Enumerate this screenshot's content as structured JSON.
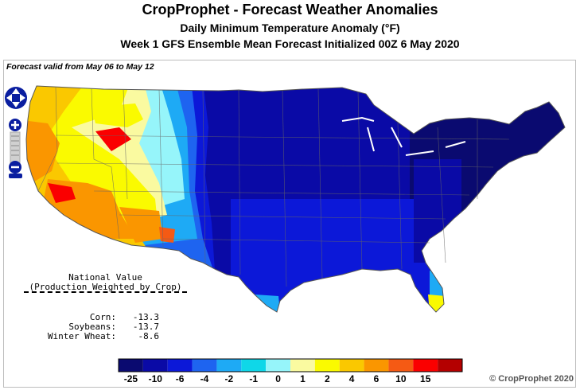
{
  "header": {
    "title": "CropProphet - Forecast Weather Anomalies",
    "subtitle": "Daily Minimum Temperature Anomaly (°F)",
    "subtitle2": "Week 1 GFS Ensemble Mean Forecast Initialized 00Z 6 May 2020"
  },
  "map": {
    "valid_text": "Forecast valid from May 06 to May 12",
    "region": "Contiguous United States",
    "overall_pattern": "Warm anomalies over the West/Southwest, strongly cold anomalies over the central and eastern US"
  },
  "national": {
    "title": "National Value",
    "subtitle": "(Production Weighted by Crop)",
    "rows": [
      {
        "name": "Corn:",
        "value": "-13.3"
      },
      {
        "name": "Soybeans:",
        "value": "-13.7"
      },
      {
        "name": "Winter Wheat:",
        "value": "-8.6"
      }
    ]
  },
  "legend": {
    "labels": [
      "-25",
      "-10",
      "-6",
      "-4",
      "-2",
      "-1",
      "0",
      "1",
      "2",
      "4",
      "6",
      "10",
      "15"
    ],
    "colors": [
      "#0a0a70",
      "#0a0aa6",
      "#0c18d8",
      "#1e64f0",
      "#1eaaf5",
      "#0fd7e8",
      "#96f5fa",
      "#fafaa0",
      "#fafa00",
      "#fac800",
      "#fa9600",
      "#f55a14",
      "#fa0000",
      "#b40000"
    ]
  },
  "copyright": "© CropProphet 2020"
}
